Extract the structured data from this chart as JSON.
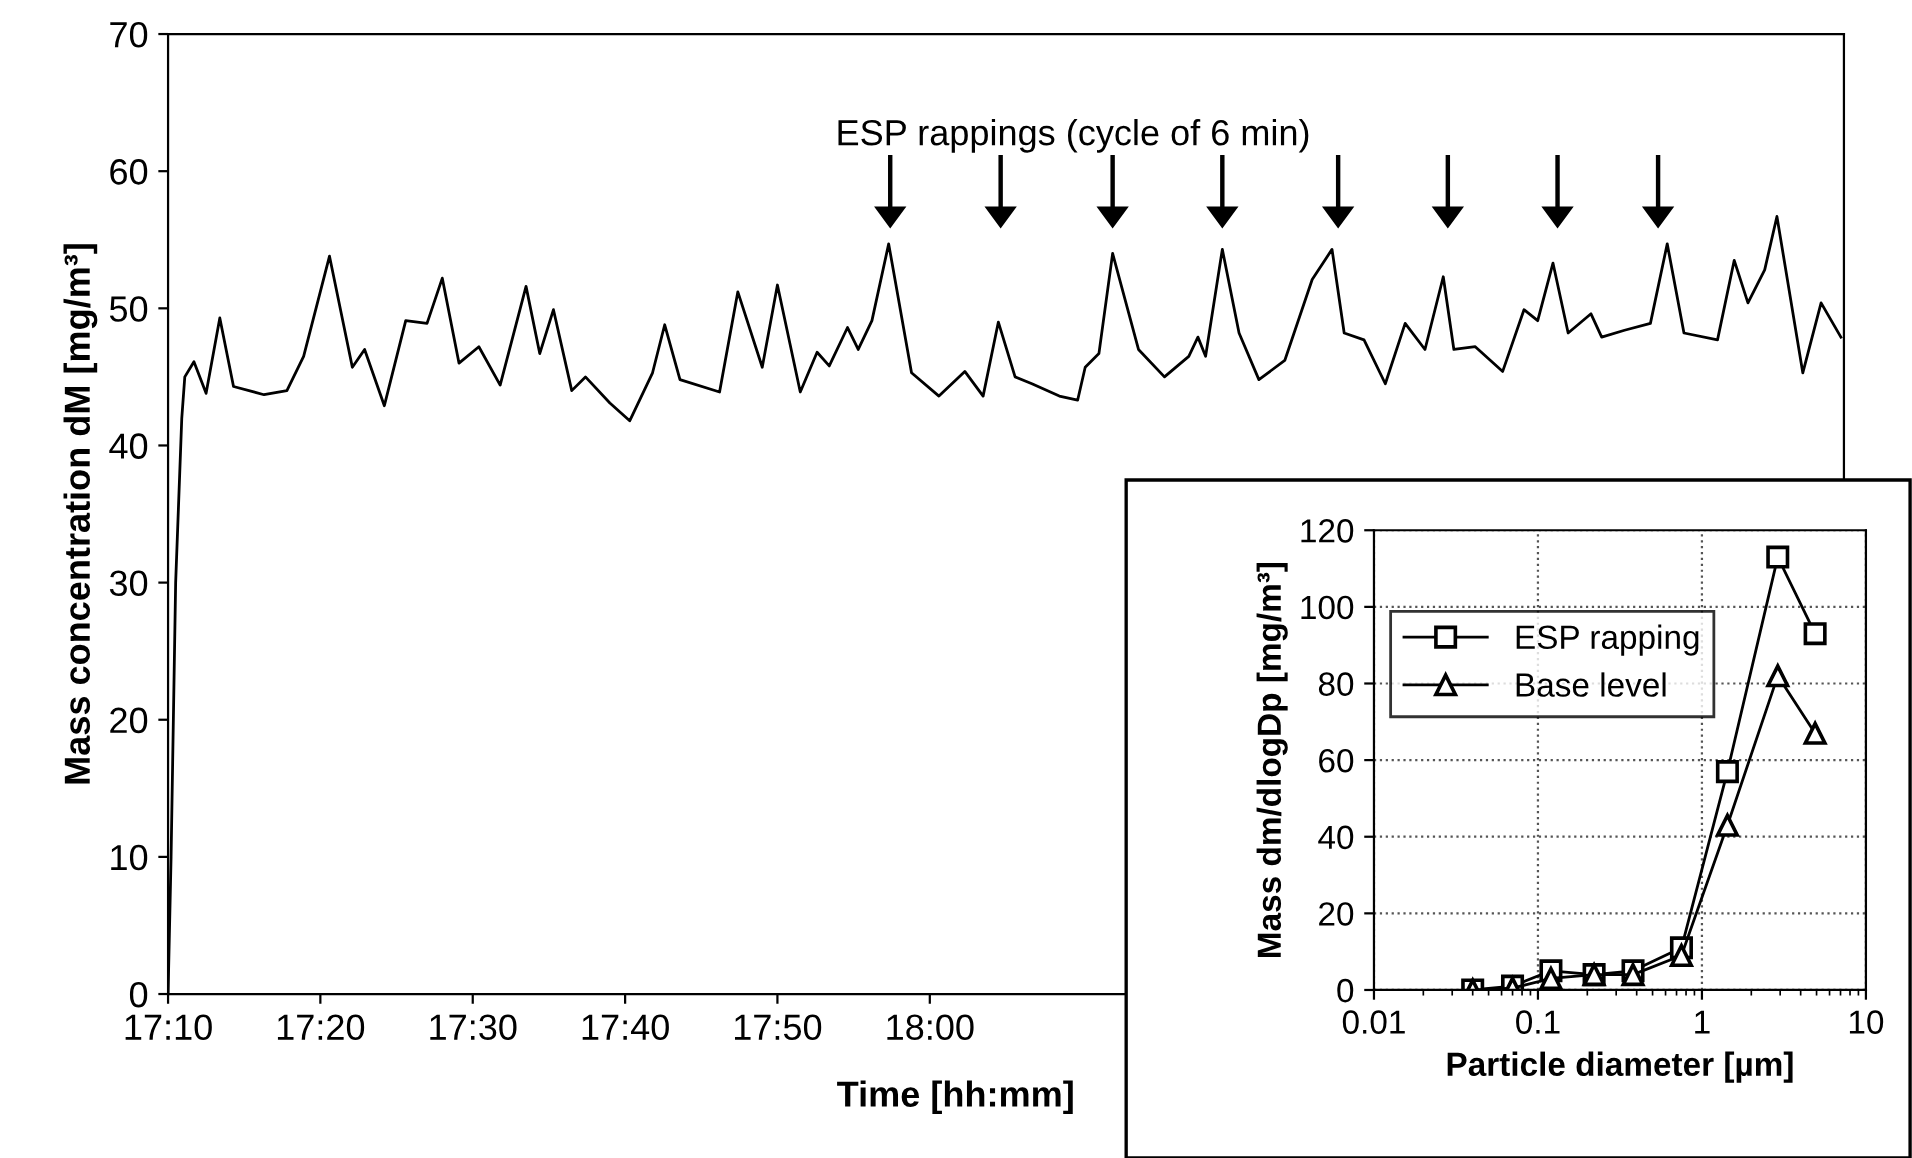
{
  "chart_data": [
    {
      "type": "line",
      "xlabel": "Time [hh:mm]",
      "ylabel": "Mass concentration dM [mg/m³]",
      "x": [
        17.1667,
        17.17,
        17.175,
        17.1817,
        17.185,
        17.195,
        17.2083,
        17.2233,
        17.2383,
        17.2717,
        17.2967,
        17.315,
        17.3433,
        17.3683,
        17.3817,
        17.4033,
        17.4267,
        17.45,
        17.4667,
        17.485,
        17.5067,
        17.53,
        17.5583,
        17.5733,
        17.5883,
        17.6083,
        17.6233,
        17.65,
        17.6717,
        17.6967,
        17.71,
        17.7267,
        17.77,
        17.79,
        17.8167,
        17.8333,
        17.8583,
        17.8767,
        17.89,
        17.91,
        17.9217,
        17.9367,
        17.955,
        17.98,
        18.01,
        18.0383,
        18.0583,
        18.075,
        18.0933,
        18.1117,
        18.1417,
        18.1617,
        18.17,
        18.185,
        18.2,
        18.2283,
        18.2567,
        18.2833,
        18.2933,
        18.3017,
        18.32,
        18.3383,
        18.36,
        18.3883,
        18.4183,
        18.44,
        18.4533,
        18.475,
        18.4983,
        18.52,
        18.5417,
        18.5617,
        18.5733,
        18.5967,
        18.6267,
        18.65,
        18.665,
        18.6817,
        18.6983,
        18.7233,
        18.735,
        18.76,
        18.7883,
        18.8067,
        18.825,
        18.8617,
        18.88,
        18.895,
        18.9133,
        18.9267,
        18.955,
        18.975,
        18.9967
      ],
      "series": [
        {
          "color": "#000000",
          "values": [
            0,
            10,
            30,
            42,
            45.0,
            46.1,
            43.8,
            49.3,
            44.3,
            43.7,
            44.0,
            46.5,
            53.8,
            45.7,
            47.0,
            42.9,
            49.1,
            48.9,
            52.2,
            46.0,
            47.2,
            44.4,
            51.6,
            46.7,
            49.9,
            44.0,
            45.0,
            43.1,
            41.8,
            45.3,
            48.8,
            44.8,
            43.9,
            51.2,
            45.7,
            51.7,
            43.9,
            46.8,
            45.8,
            48.6,
            47.0,
            49.1,
            54.7,
            45.3,
            43.6,
            45.4,
            43.6,
            49.0,
            45.0,
            44.5,
            43.6,
            43.3,
            45.7,
            46.7,
            54.0,
            47.0,
            45.0,
            46.5,
            47.9,
            46.5,
            54.3,
            48.2,
            44.8,
            46.2,
            52.1,
            54.3,
            48.2,
            47.7,
            44.5,
            48.9,
            47.0,
            52.3,
            47.0,
            47.2,
            45.4,
            49.9,
            49.1,
            53.3,
            48.2,
            49.6,
            47.9,
            48.4,
            48.9,
            54.7,
            48.2,
            47.7,
            53.5,
            50.4,
            52.8,
            56.7,
            45.3,
            50.4,
            47.9
          ]
        },
        {
          "type": "scatter",
          "marker": "triangle",
          "color": "#000000",
          "x": [
            17.9567,
            18.0775,
            18.2,
            18.32,
            18.4467,
            18.5667,
            18.6867,
            18.7967
          ],
          "values": [
            58.5,
            58.5,
            58.5,
            58.5,
            58.5,
            58.5,
            58.5,
            58.5
          ]
        }
      ],
      "xlim": [
        17.1667,
        19.0
      ],
      "xticks": [
        {
          "value": 17.1667,
          "label": "17:10"
        },
        {
          "value": 17.3333,
          "label": "17:20"
        },
        {
          "value": 17.5,
          "label": "17:30"
        },
        {
          "value": 17.6667,
          "label": "17:40"
        },
        {
          "value": 17.8333,
          "label": "17:50"
        },
        {
          "value": 18.0,
          "label": "18:00"
        }
      ],
      "ylim": [
        0,
        70
      ],
      "yticks": [
        0,
        10,
        20,
        30,
        40,
        50,
        60,
        70
      ],
      "grid": false,
      "legend": false,
      "marker": "none",
      "line_style": "solid",
      "annotations": [
        "ESP rappings (cycle of 6 min)"
      ]
    },
    {
      "type": "line",
      "xlabel": "Particle diameter [µm]",
      "ylabel": "Mass dm/dlogDp [mg/m³]",
      "log": "x",
      "x": [
        0.04,
        0.07,
        0.12,
        0.22,
        0.38,
        0.75,
        1.43,
        2.9,
        4.9
      ],
      "series": [
        {
          "name": "ESP rapping",
          "color": "#000000",
          "marker": "square",
          "values": [
            0,
            1,
            5,
            4,
            5,
            11,
            57,
            113,
            93
          ]
        },
        {
          "name": "Base level",
          "color": "#000000",
          "marker": "triangle",
          "values": [
            0,
            0.5,
            3,
            4,
            4,
            9,
            43,
            82,
            67
          ]
        }
      ],
      "xlim": [
        0.01,
        10
      ],
      "xticks": [
        0.01,
        0.1,
        1,
        10
      ],
      "ylim": [
        0,
        120
      ],
      "yticks": [
        0,
        20,
        40,
        60,
        80,
        100,
        120
      ],
      "grid": true,
      "legend": "upper left",
      "line_style": "solid"
    }
  ]
}
